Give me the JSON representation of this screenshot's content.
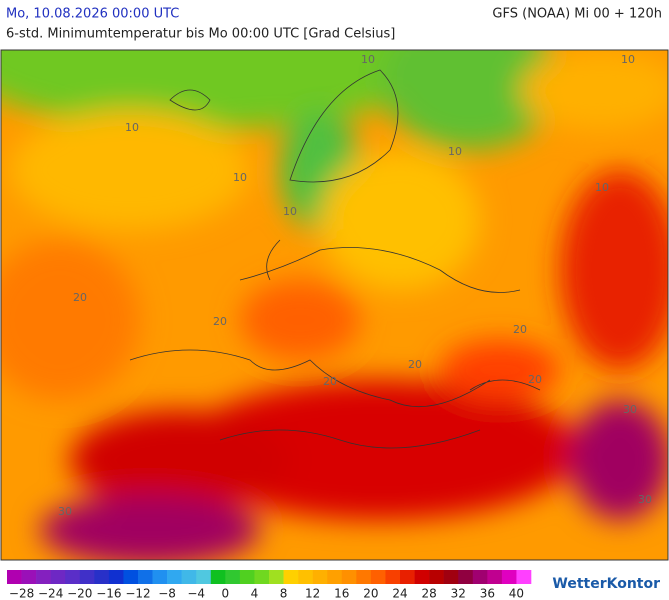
{
  "header": {
    "date": "Mo, 10.08.2026 00:00 UTC",
    "model": "GFS (NOAA) Mi 00 + 120h",
    "subtitle": "6-std. Minimumtemperatur bis Mo 00:00 UTC [Grad Celsius]"
  },
  "map": {
    "contour_labels": [
      "10",
      "10",
      "10",
      "10",
      "10",
      "10",
      "10",
      "20",
      "20",
      "20",
      "20",
      "20",
      "20",
      "30",
      "30",
      "30",
      "30",
      "30"
    ]
  },
  "legend": {
    "labels": [
      "−28",
      "−24",
      "−20",
      "−16",
      "−12",
      "−8",
      "−4",
      "0",
      "4",
      "8",
      "12",
      "16",
      "20",
      "24",
      "28",
      "32",
      "36",
      "40"
    ],
    "colors": [
      "#b000b0",
      "#9a10b8",
      "#8420bf",
      "#6e28c4",
      "#5a2ec8",
      "#4030c8",
      "#2830c8",
      "#1030d0",
      "#0050e0",
      "#1070e8",
      "#2090f0",
      "#30a8f0",
      "#40b8e8",
      "#50c8e0",
      "#10c020",
      "#30c830",
      "#50d020",
      "#70d820",
      "#a0e020",
      "#ffd000",
      "#ffc000",
      "#ffb000",
      "#ffa000",
      "#ff9000",
      "#ff7800",
      "#ff6000",
      "#f84000",
      "#e82000",
      "#d00000",
      "#b80000",
      "#a00010",
      "#900040",
      "#a00070",
      "#c00090",
      "#e000c0",
      "#ff40ff"
    ],
    "logo": "WetterKontor"
  }
}
